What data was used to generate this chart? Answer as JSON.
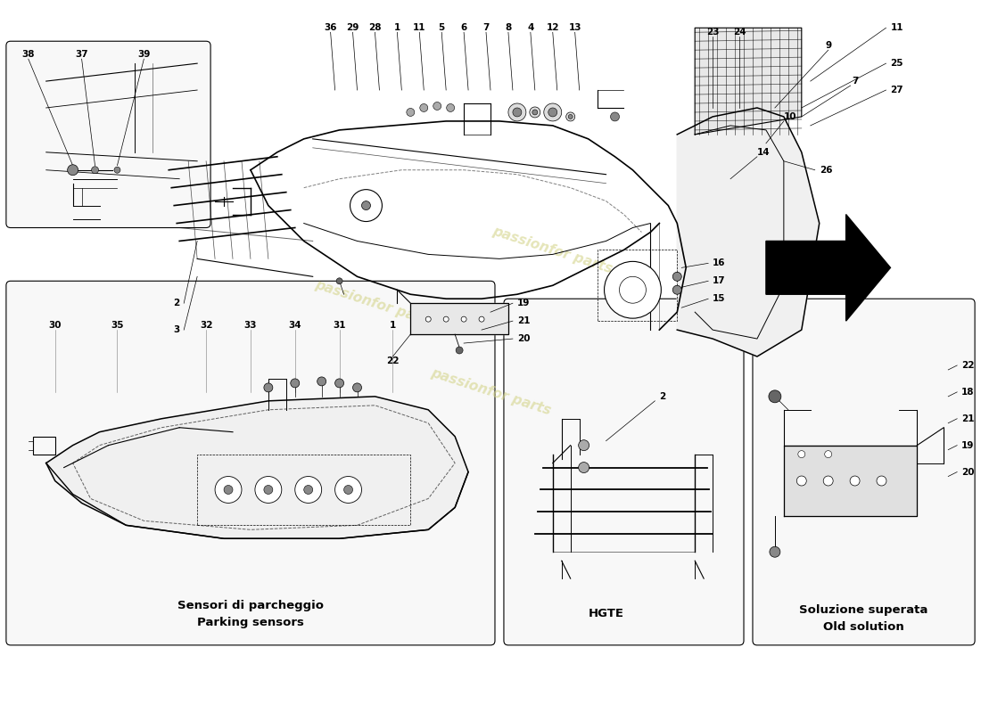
{
  "bg_color": "#ffffff",
  "line_color": "#000000",
  "text_color": "#000000",
  "watermark_text": "passionfor parts",
  "watermark_color": "#d4d48a",
  "label_parking_it": "Sensori di parcheggio",
  "label_parking_en": "Parking sensors",
  "label_hgte": "HGTE",
  "label_old_it": "Soluzione superata",
  "label_old_en": "Old solution",
  "fs": 7.5,
  "fs_bold": 9.5
}
